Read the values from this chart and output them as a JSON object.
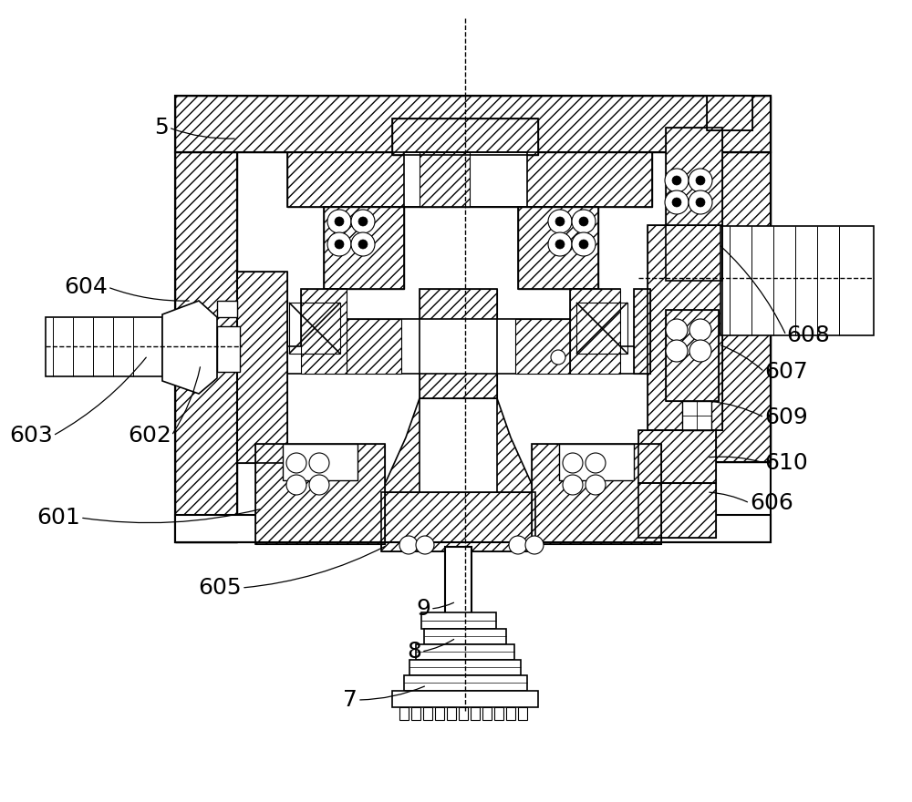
{
  "bg_color": "#ffffff",
  "figsize": [
    10.0,
    8.8
  ],
  "dpi": 100,
  "labels": [
    [
      "5",
      185,
      140
    ],
    [
      "604",
      118,
      315
    ],
    [
      "603",
      58,
      478
    ],
    [
      "602",
      188,
      478
    ],
    [
      "601",
      88,
      568
    ],
    [
      "605",
      265,
      645
    ],
    [
      "9",
      472,
      668
    ],
    [
      "8",
      462,
      715
    ],
    [
      "7",
      392,
      768
    ],
    [
      "608",
      862,
      368
    ],
    [
      "607",
      838,
      408
    ],
    [
      "609",
      838,
      458
    ],
    [
      "610",
      838,
      508
    ],
    [
      "606",
      822,
      552
    ]
  ],
  "leaders": [
    [
      "5",
      185,
      140,
      260,
      152
    ],
    [
      "604",
      118,
      315,
      210,
      330
    ],
    [
      "603",
      58,
      478,
      162,
      390
    ],
    [
      "602",
      188,
      478,
      220,
      400
    ],
    [
      "601",
      88,
      568,
      288,
      558
    ],
    [
      "605",
      265,
      645,
      425,
      598
    ],
    [
      "9",
      472,
      668,
      500,
      660
    ],
    [
      "8",
      462,
      715,
      500,
      700
    ],
    [
      "7",
      392,
      768,
      468,
      752
    ],
    [
      "608",
      862,
      368,
      788,
      268
    ],
    [
      "607",
      838,
      408,
      788,
      378
    ],
    [
      "609",
      838,
      458,
      775,
      440
    ],
    [
      "610",
      838,
      508,
      775,
      502
    ],
    [
      "606",
      822,
      552,
      775,
      540
    ]
  ]
}
